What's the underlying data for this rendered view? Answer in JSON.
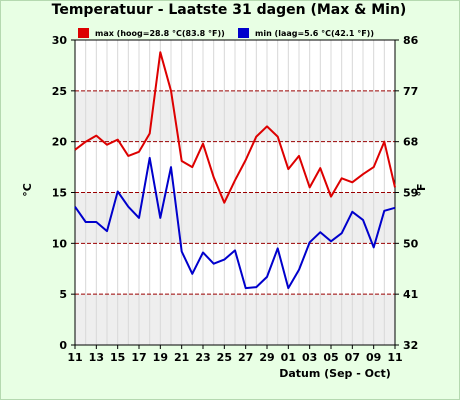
{
  "chart_data": {
    "type": "line",
    "title": "Temperatuur - Laatste 31 dagen (Max & Min)",
    "xlabel": "Datum (Sep - Oct)",
    "ylabel_left": "°C",
    "ylabel_right": "°F",
    "ylim": [
      0,
      30
    ],
    "yticks_left": [
      "0",
      "5",
      "10",
      "15",
      "20",
      "25",
      "30"
    ],
    "yticks_right": [
      "32",
      "41",
      "50",
      "59",
      "68",
      "77",
      "86"
    ],
    "x_tick_labels": [
      "11",
      "13",
      "15",
      "17",
      "19",
      "21",
      "23",
      "25",
      "27",
      "29",
      "01",
      "03",
      "05",
      "07",
      "09",
      "11"
    ],
    "series": [
      {
        "name": "max (hoog=28.8 °C(83.8 °F))",
        "color": "#dd0000",
        "values": [
          19.2,
          20.0,
          20.6,
          19.7,
          20.2,
          18.6,
          19.0,
          20.8,
          28.8,
          25.0,
          18.1,
          17.5,
          19.8,
          16.5,
          14.0,
          16.2,
          18.2,
          20.5,
          21.5,
          20.5,
          17.3,
          18.6,
          15.5,
          17.4,
          14.6,
          16.4,
          16.0,
          16.8,
          17.5,
          20.0,
          15.5
        ]
      },
      {
        "name": "min (laag=5.6 °C(42.1 °F))",
        "color": "#0000cc",
        "values": [
          13.6,
          12.1,
          12.1,
          11.2,
          15.1,
          13.6,
          12.5,
          18.4,
          12.5,
          17.5,
          9.2,
          7.0,
          9.1,
          8.0,
          8.4,
          9.3,
          5.6,
          5.7,
          6.7,
          9.5,
          5.6,
          7.4,
          10.1,
          11.1,
          10.2,
          11.0,
          13.1,
          12.3,
          9.6,
          13.2,
          13.5
        ]
      }
    ]
  }
}
